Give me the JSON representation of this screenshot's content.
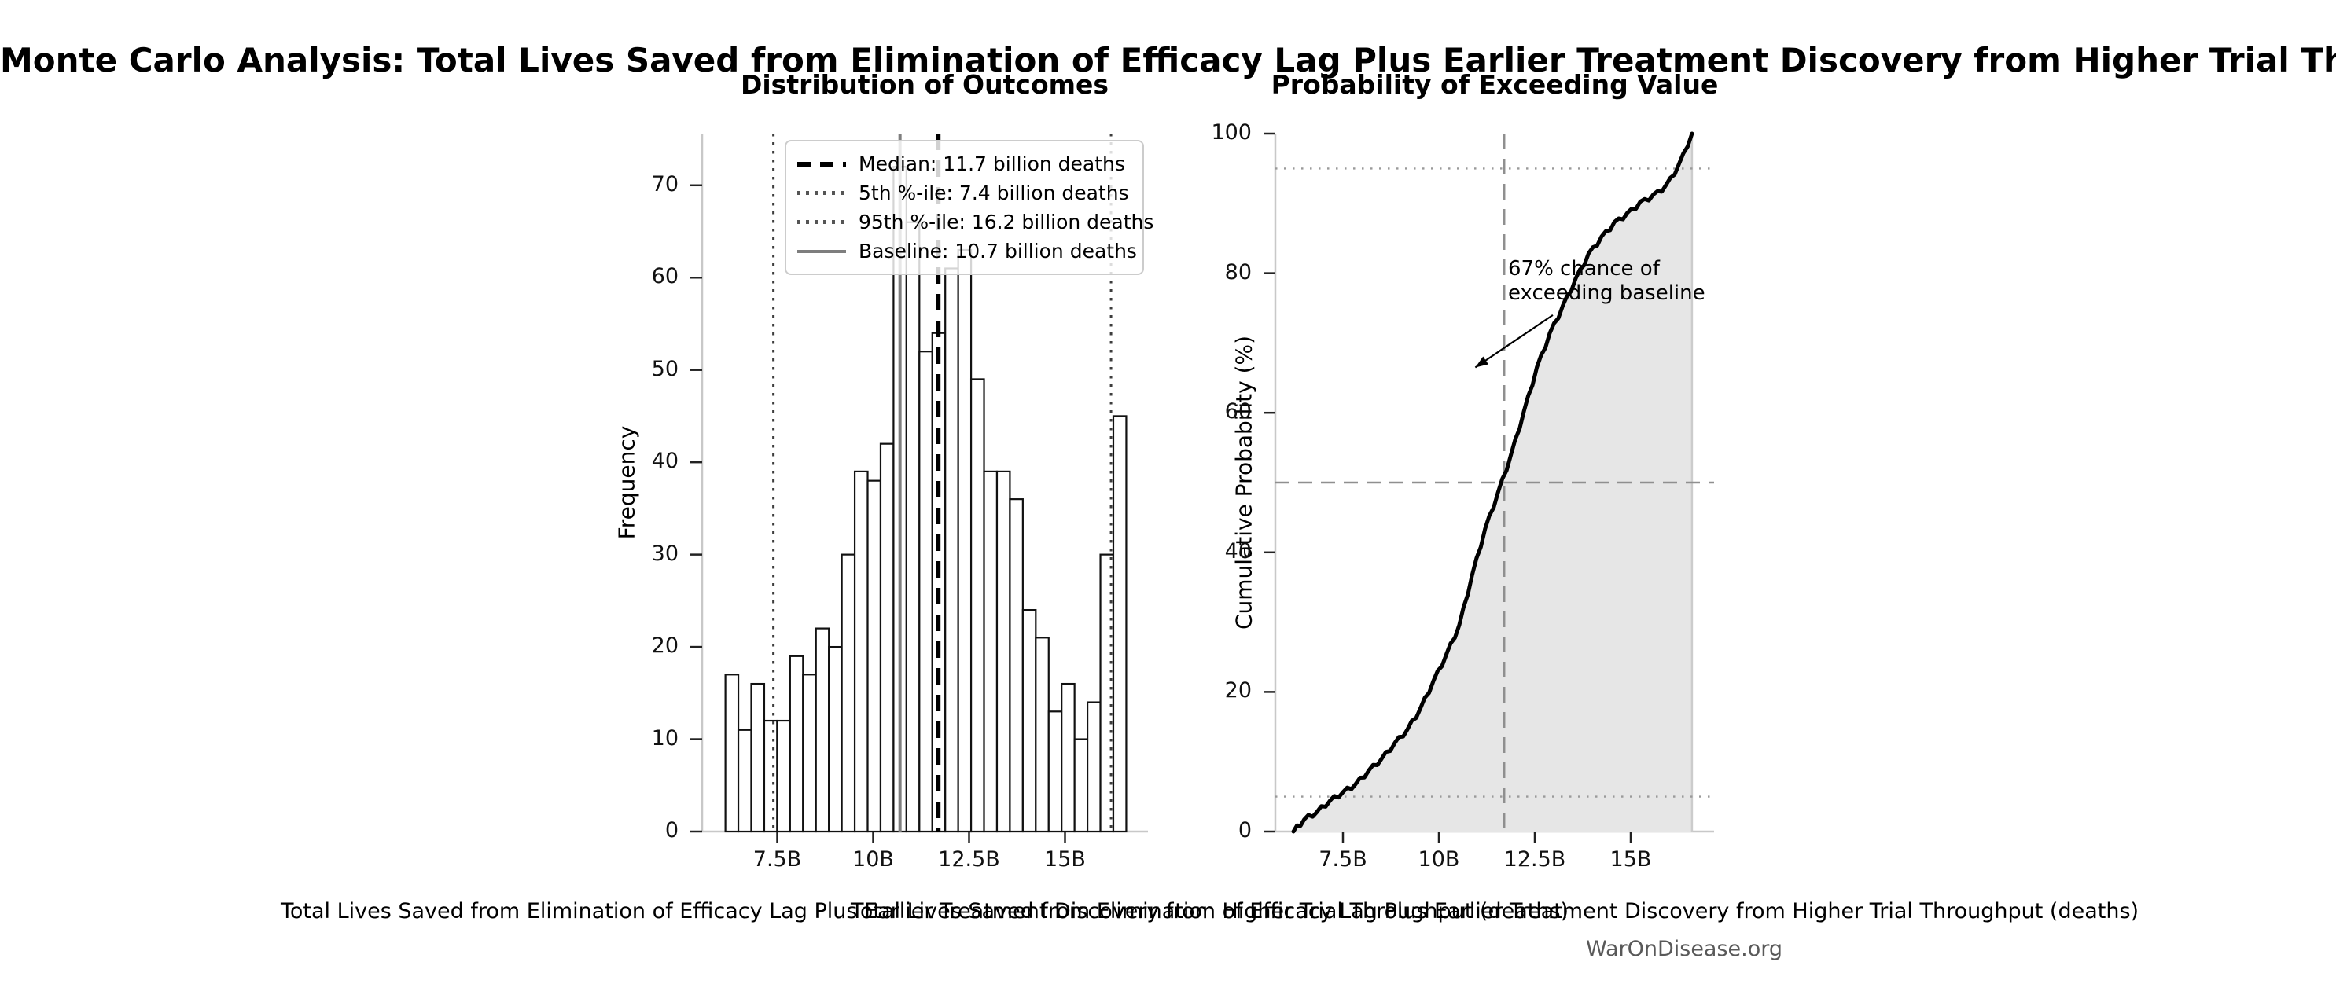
{
  "figure": {
    "title": "Monte Carlo Analysis: Total Lives Saved from Elimination of Efficacy Lag Plus Earlier Treatment Discovery from Higher Trial Throughput",
    "footer": "WarOnDisease.org"
  },
  "chart_data": [
    {
      "id": "outcomes-histogram",
      "type": "bar",
      "title": "Distribution of Outcomes",
      "xlabel": "Total Lives Saved from Elimination of Efficacy Lag Plus Earlier Treatment Discovery from Higher Trial Throughput (deaths)",
      "ylabel": "Frequency",
      "x_unit": "billions of deaths averted",
      "bin_start": 6.15,
      "bin_width": 0.337,
      "counts": [
        17,
        11,
        16,
        12,
        12,
        19,
        17,
        22,
        20,
        30,
        39,
        38,
        42,
        72,
        66,
        52,
        54,
        61,
        63,
        49,
        39,
        39,
        36,
        24,
        21,
        13,
        16,
        10,
        14,
        30,
        45
      ],
      "x_ticks": [
        {
          "v": 7.5,
          "label": "7.5B"
        },
        {
          "v": 10,
          "label": "10B"
        },
        {
          "v": 12.5,
          "label": "12.5B"
        },
        {
          "v": 15,
          "label": "15B"
        }
      ],
      "y_ticks": [
        0,
        10,
        20,
        30,
        40,
        50,
        60,
        70
      ],
      "xlim": [
        5.55,
        17.1
      ],
      "ylim": [
        0,
        75.6
      ],
      "grid": false,
      "ref_lines": {
        "median": {
          "x": 11.7,
          "style": "dashed-black"
        },
        "p5": {
          "x": 7.4,
          "style": "dotted-gray"
        },
        "p95": {
          "x": 16.2,
          "style": "dotted-gray"
        },
        "baseline": {
          "x": 10.7,
          "style": "solid-gray"
        }
      },
      "legend": {
        "position": "upper-right",
        "rows": [
          {
            "style": "dashed-black",
            "label": "Median: 11.7 billion deaths"
          },
          {
            "style": "dotted-gray",
            "label": "5th %-ile: 7.4 billion deaths"
          },
          {
            "style": "dotted-gray",
            "label": "95th %-ile: 16.2 billion deaths"
          },
          {
            "style": "solid-gray",
            "label": "Baseline: 10.7 billion deaths"
          }
        ]
      }
    },
    {
      "id": "exceedance-cdf",
      "type": "line",
      "title": "Probability of Exceeding Value",
      "xlabel": "Total Lives Saved from Elimination of Efficacy Lag Plus Earlier Treatment Discovery from Higher Trial Throughput (deaths)",
      "ylabel": "Cumulative Probability (%)",
      "x_ticks": [
        {
          "v": 7.5,
          "label": "7.5B"
        },
        {
          "v": 10,
          "label": "10B"
        },
        {
          "v": 12.5,
          "label": "12.5B"
        },
        {
          "v": 15,
          "label": "15B"
        }
      ],
      "y_ticks": [
        0,
        20,
        40,
        60,
        80,
        100
      ],
      "xlim": [
        5.74,
        17.1
      ],
      "ylim": [
        0,
        100
      ],
      "grid": false,
      "curve": {
        "comment": "cumulative % at successive bin right-edges; bins shared with histogram",
        "x_start": 6.21,
        "cumulative_pct": [
          1.7,
          2.8,
          4.4,
          5.6,
          6.8,
          8.7,
          10.4,
          12.6,
          14.6,
          17.6,
          21.5,
          25.3,
          29.5,
          36.7,
          43.3,
          48.5,
          53.9,
          60.1,
          66.4,
          71.3,
          75.2,
          79.1,
          82.7,
          85.1,
          87.2,
          88.5,
          90.1,
          91.1,
          92.5,
          95.5,
          100.0
        ],
        "fill": "#e6e6e6",
        "line_color": "#000000"
      },
      "ref_lines": {
        "median_vline": {
          "x": 11.7,
          "style": "dashed-gray"
        },
        "h50": {
          "y": 50,
          "style": "dashed-gray"
        },
        "h5": {
          "y": 5,
          "style": "dotted-gray"
        },
        "h95": {
          "y": 95,
          "style": "dotted-gray"
        }
      },
      "annotation": {
        "line1": "67% chance of",
        "line2": "exceeding baseline",
        "exceed_baseline_pct": 67,
        "arrow_from": {
          "x_billion": 12.97,
          "pct": 74.0
        },
        "arrow_to": {
          "x_billion": 10.95,
          "pct": 66.5
        }
      }
    }
  ],
  "colors": {
    "bar_fill": "#ffffff",
    "bar_edge": "#111111",
    "median_line": "#000000",
    "percentile_line": "#3d3d3d",
    "baseline_line": "#7e7e7e",
    "cdf_fill": "#e6e6e6",
    "cdf_line": "#000000",
    "ref_gray": "#8f8f8f",
    "dotted_gray": "#9a9a9a",
    "spine": "#c8c8c8",
    "tick": "#222222",
    "footer_text": "#595959"
  }
}
